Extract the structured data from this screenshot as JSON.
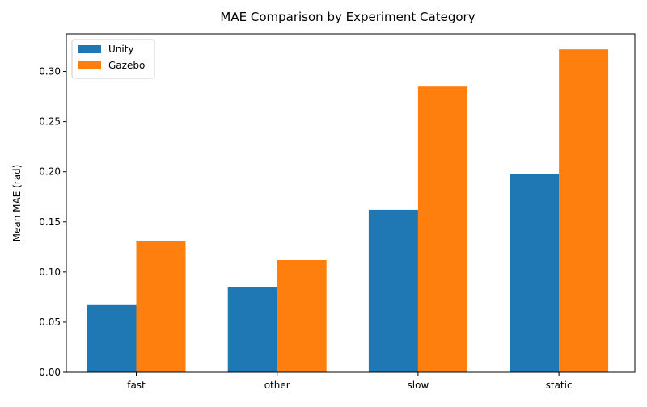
{
  "chart_data": {
    "type": "bar",
    "title": "MAE Comparison by Experiment Category",
    "xlabel": "",
    "ylabel": "Mean MAE (rad)",
    "categories": [
      "fast",
      "other",
      "slow",
      "static"
    ],
    "series": [
      {
        "name": "Unity",
        "color": "#1f77b4",
        "values": [
          0.067,
          0.085,
          0.162,
          0.198
        ]
      },
      {
        "name": "Gazebo",
        "color": "#ff7f0e",
        "values": [
          0.131,
          0.112,
          0.285,
          0.322
        ]
      }
    ],
    "ylim": [
      0,
      0.3375
    ],
    "yticks": [
      "0.00",
      "0.05",
      "0.10",
      "0.15",
      "0.20",
      "0.25",
      "0.30"
    ],
    "grid": false,
    "legend": "top-left"
  }
}
